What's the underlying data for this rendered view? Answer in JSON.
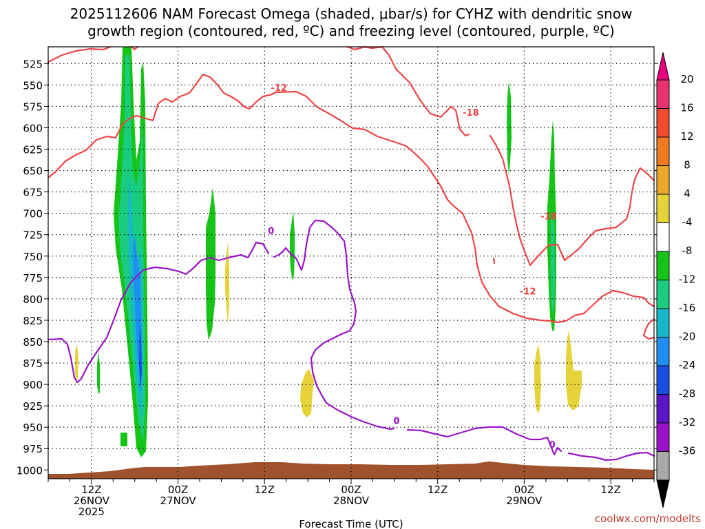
{
  "chart_data": {
    "type": "heatmap",
    "title_lines": [
      "2025112606 NAM Forecast Omega (shaded, μbar/s) for CYHZ with dendritic snow",
      "growth region (contoured, red, ºC) and freezing level (contoured, purple, ºC)"
    ],
    "xlabel": "Forecast Time (UTC)",
    "credit": "coolwx.com/modelts",
    "y_ticks": [
      525,
      550,
      575,
      600,
      625,
      650,
      675,
      700,
      725,
      750,
      775,
      800,
      825,
      850,
      875,
      900,
      925,
      950,
      975,
      1000
    ],
    "x_ticks": [
      {
        "t": 6,
        "l1": "12Z",
        "l2": "26NOV",
        "l3": "2025"
      },
      {
        "t": 18,
        "l1": "00Z",
        "l2": "27NOV",
        "l3": ""
      },
      {
        "t": 30,
        "l1": "12Z",
        "l2": "",
        "l3": ""
      },
      {
        "t": 42,
        "l1": "00Z",
        "l2": "28NOV",
        "l3": ""
      },
      {
        "t": 54,
        "l1": "12Z",
        "l2": "",
        "l3": ""
      },
      {
        "t": 66,
        "l1": "00Z",
        "l2": "29NOV",
        "l3": ""
      },
      {
        "t": 78,
        "l1": "12Z",
        "l2": "",
        "l3": ""
      }
    ],
    "colorbar": {
      "labels": [
        "20",
        "16",
        "12",
        "8",
        "4",
        "-4",
        "-8",
        "-12",
        "-16",
        "-20",
        "-24",
        "-28",
        "-32",
        "-36"
      ],
      "colors": [
        "#e8336e",
        "#ee4b30",
        "#f07a1f",
        "#e9a82a",
        "#e6d33a",
        "#ffffff",
        "#16c417",
        "#19cc80",
        "#16b8c8",
        "#1e8ff0",
        "#1b4ee0",
        "#5a16c8",
        "#9a12c8",
        "#a9a9a9",
        "#000000",
        "#e8007e"
      ]
    },
    "contour_labels": [
      {
        "text": "-12",
        "t": 32.0,
        "p": 553,
        "color": "#ef4444"
      },
      {
        "text": "-18",
        "t": 58.6,
        "p": 582,
        "color": "#ef4444"
      },
      {
        "text": "-18",
        "t": 69.4,
        "p": 703,
        "color": "#ef4444"
      },
      {
        "text": "-12",
        "t": 66.5,
        "p": 791,
        "color": "#ef4444"
      },
      {
        "text": "0",
        "t": 30.9,
        "p": 720,
        "color": "#9a12c8"
      },
      {
        "text": "0",
        "t": 48.3,
        "p": 942,
        "color": "#9a12c8"
      },
      {
        "text": "0",
        "t": 69.9,
        "p": 970,
        "color": "#9a12c8"
      }
    ]
  }
}
